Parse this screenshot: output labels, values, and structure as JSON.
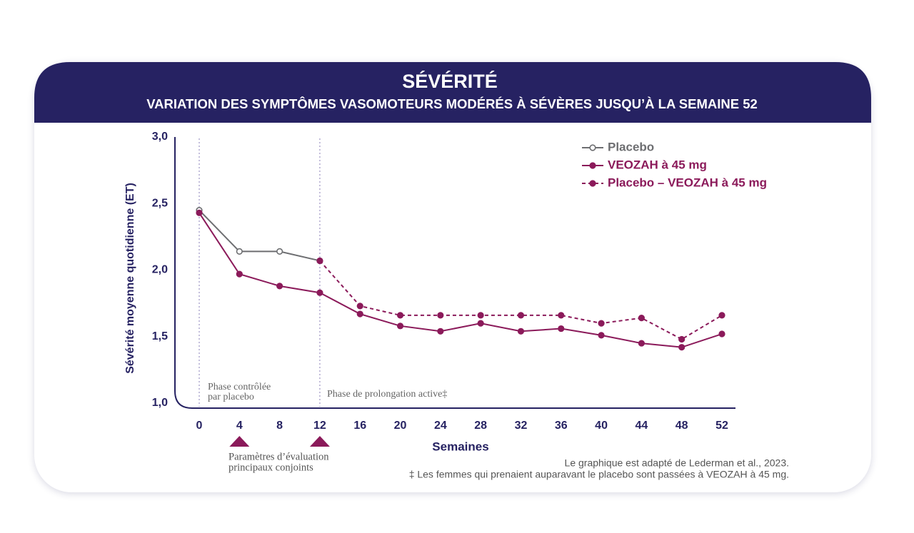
{
  "chart_data": {
    "type": "line",
    "title": "SÉVÉRITÉ",
    "subtitle": "VARIATION DES SYMPTÔMES VASOMOTEURS MODÉRÉS À SÉVÈRES JUSQU’À LA SEMAINE 52",
    "y_label": "Sévérité moyenne quotidienne (ET)",
    "x_label": "Semaines",
    "x": [
      0,
      4,
      8,
      12,
      16,
      20,
      24,
      28,
      32,
      36,
      40,
      44,
      48,
      52
    ],
    "series": [
      {
        "name": "Placebo",
        "color": "#6d6e71",
        "marker": "open",
        "line_style": "solid",
        "values": [
          2.45,
          2.14,
          2.14,
          2.07,
          null,
          null,
          null,
          null,
          null,
          null,
          null,
          null,
          null,
          null
        ]
      },
      {
        "name": "VEOZAH à 45 mg",
        "color": "#8b1a5a",
        "marker": "filled",
        "line_style": "solid",
        "values": [
          2.43,
          1.97,
          1.88,
          1.83,
          1.67,
          1.58,
          1.54,
          1.6,
          1.54,
          1.56,
          1.51,
          1.45,
          1.42,
          1.52
        ]
      },
      {
        "name": "Placebo – VEOZAH à 45 mg",
        "color": "#8b1a5a",
        "marker": "filled",
        "line_style": "dashed",
        "values": [
          null,
          null,
          null,
          2.07,
          1.73,
          1.66,
          1.66,
          1.66,
          1.66,
          1.66,
          1.6,
          1.64,
          1.48,
          1.66
        ]
      }
    ],
    "xlim": [
      0,
      52
    ],
    "xticks": [
      0,
      4,
      8,
      12,
      16,
      20,
      24,
      28,
      32,
      36,
      40,
      44,
      48,
      52
    ],
    "ylim": [
      1,
      3
    ],
    "yticks": [
      {
        "value": 1,
        "label": "1,0"
      },
      {
        "value": 1.5,
        "label": "1,5"
      },
      {
        "value": 2,
        "label": "2,0"
      },
      {
        "value": 2.5,
        "label": "2,5"
      },
      {
        "value": 3,
        "label": "3,0"
      }
    ],
    "legend": "top-right",
    "phase_lines": [
      0,
      12
    ],
    "annotations": {
      "phase1": [
        "Phase contrôlée",
        "par placebo"
      ],
      "phase2": "Phase de prolongation active‡",
      "endpoints": [
        "Paramètres d’évaluation",
        "principaux conjoints"
      ],
      "endpoint_weeks": [
        4,
        12
      ],
      "notes": [
        "Le graphique est adapté de Lederman et al., 2023.",
        "‡ Les femmes qui prenaient auparavant le placebo sont passées à VEOZAH à 45 mg."
      ]
    }
  }
}
